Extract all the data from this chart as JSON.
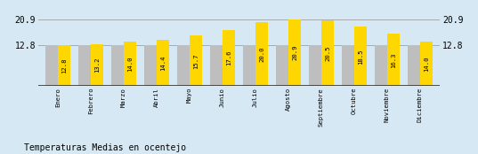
{
  "months": [
    "Enero",
    "Febrero",
    "Marzo",
    "Abril",
    "Mayo",
    "Junio",
    "Julio",
    "Agosto",
    "Septiembre",
    "Octubre",
    "Noviembre",
    "Diciembre"
  ],
  "values": [
    12.8,
    13.2,
    14.0,
    14.4,
    15.7,
    17.6,
    20.0,
    20.9,
    20.5,
    18.5,
    16.3,
    14.0
  ],
  "gray_values": [
    12.8,
    12.8,
    12.8,
    12.8,
    12.8,
    12.8,
    12.8,
    12.8,
    12.8,
    12.8,
    12.8,
    12.8
  ],
  "bar_color_yellow": "#FFD700",
  "bar_color_gray": "#BEBEBE",
  "bg_color": "#D6E8F4",
  "title": "Temperaturas Medias en ocentejo",
  "ymin": 0.0,
  "ymax": 23.5,
  "ytick_vals": [
    12.8,
    20.9
  ],
  "ytick_labels": [
    "12.8",
    "20.9"
  ],
  "hline_color": "#AAAAAA",
  "baseline_color": "#333333",
  "value_fontsize": 5.2,
  "title_fontsize": 7.0,
  "month_fontsize": 5.2,
  "tick_fontsize": 7.0
}
